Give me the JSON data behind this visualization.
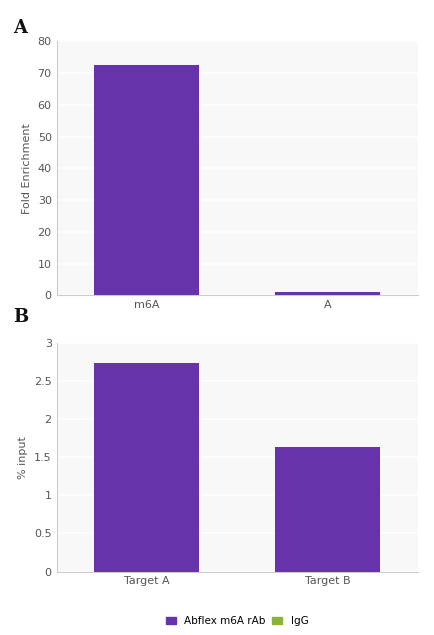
{
  "chart_A": {
    "label": "A",
    "categories": [
      "m6A",
      "A"
    ],
    "values": [
      72.5,
      1.0
    ],
    "bar_color": "#6633aa",
    "ylabel": "Fold Enrichment",
    "ylim": [
      0,
      80
    ],
    "yticks": [
      0,
      10,
      20,
      30,
      40,
      50,
      60,
      70,
      80
    ],
    "bar_width": 0.35
  },
  "chart_B": {
    "label": "B",
    "categories": [
      "Target A",
      "Target B"
    ],
    "values": [
      2.73,
      1.63
    ],
    "bar_color": "#6633aa",
    "igg_color": "#8ab33a",
    "ylabel": "% input",
    "ylim": [
      0,
      3
    ],
    "yticks": [
      0,
      0.5,
      1,
      1.5,
      2,
      2.5,
      3
    ],
    "bar_width": 0.35,
    "legend_labels": [
      "Abflex m6A rAb",
      "IgG"
    ]
  },
  "bg_color": "#f8f8f8",
  "grid_color": "#ffffff",
  "fig_bg": "#ffffff",
  "spine_color": "#cccccc",
  "tick_color": "#555555",
  "label_fontsize": 13,
  "tick_fontsize": 8,
  "ylabel_fontsize": 8
}
